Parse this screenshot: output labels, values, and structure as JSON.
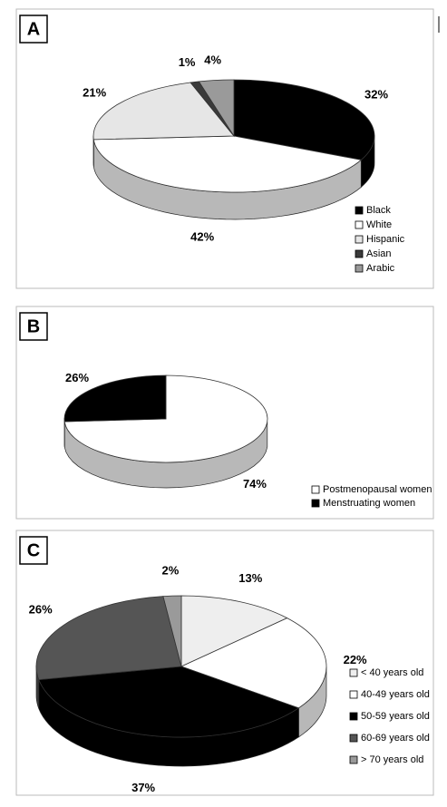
{
  "chart_data": [
    {
      "type": "pie",
      "panel": "A",
      "categories": [
        "Black",
        "White",
        "Hispanic",
        "Asian",
        "Arabic"
      ],
      "values": [
        32,
        42,
        21,
        1,
        4
      ],
      "value_labels": [
        "32%",
        "42%",
        "21%",
        "1%",
        "4%"
      ],
      "colors": [
        "#000000",
        "#ffffff",
        "#e6e6e6",
        "#3a3a3a",
        "#9a9a9a"
      ]
    },
    {
      "type": "pie",
      "panel": "B",
      "categories": [
        "Postmenopausal women",
        "Menstruating women"
      ],
      "values": [
        74,
        26
      ],
      "value_labels": [
        "74%",
        "26%"
      ],
      "colors": [
        "#ffffff",
        "#000000"
      ]
    },
    {
      "type": "pie",
      "panel": "C",
      "categories": [
        "< 40 years old",
        "40-49 years old",
        "50-59 years old",
        "60-69 years old",
        "> 70 years old"
      ],
      "values": [
        13,
        22,
        37,
        26,
        2
      ],
      "value_labels": [
        "13%",
        "22%",
        "37%",
        "26%",
        "2%"
      ],
      "colors": [
        "#eeeeee",
        "#ffffff",
        "#000000",
        "#555555",
        "#9a9a9a"
      ]
    }
  ]
}
